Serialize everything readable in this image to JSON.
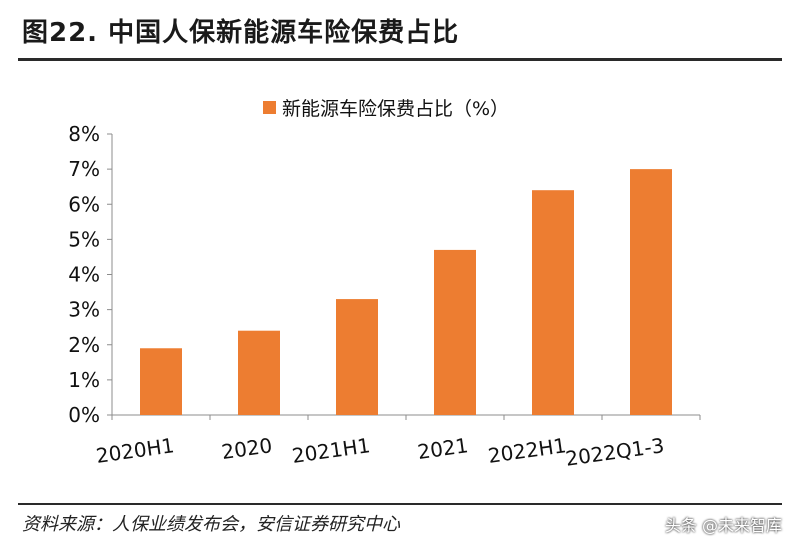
{
  "header": {
    "title": "图22. 中国人保新能源车险保费占比"
  },
  "footer": {
    "source": "资料来源：人保业绩发布会，安信证券研究中心",
    "watermark": "头条 @未来智库"
  },
  "colors": {
    "bar": "#ED7D31",
    "axis": "#8C8C8C",
    "rule": "#2A2A2A"
  },
  "chart_data": {
    "type": "bar",
    "title": "",
    "xlabel": "",
    "ylabel": "",
    "categories": [
      "2020H1",
      "2020",
      "2021H1",
      "2021",
      "2022H1",
      "2022Q1-3"
    ],
    "series": [
      {
        "name": "新能源车险保费占比（%）",
        "values": [
          1.9,
          2.4,
          3.3,
          4.7,
          6.4,
          7.0
        ]
      }
    ],
    "ylim": [
      0,
      8
    ],
    "yticks": [
      "0%",
      "1%",
      "2%",
      "3%",
      "4%",
      "5%",
      "6%",
      "7%",
      "8%"
    ],
    "grid": false,
    "legend_position": "top-center"
  }
}
